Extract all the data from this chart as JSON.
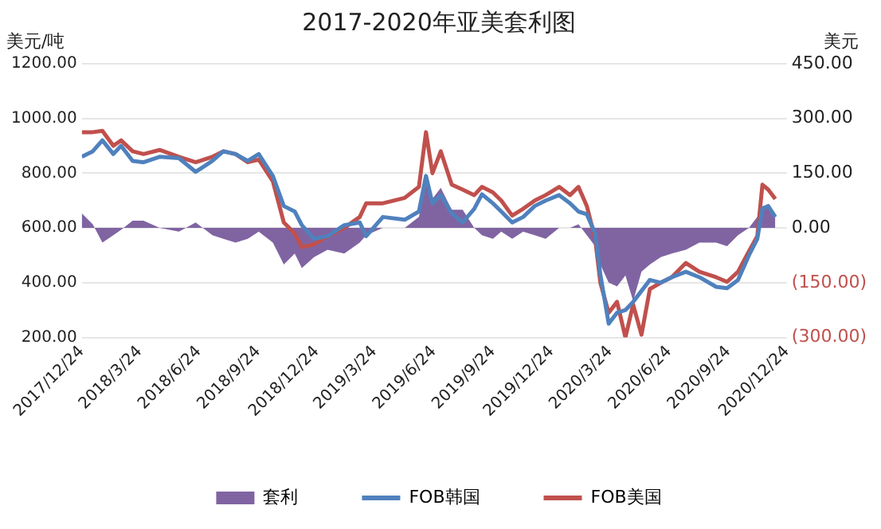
{
  "chart_data": {
    "type": "line",
    "title": "2017-2020年亚美套利图",
    "ylabel": "美元/吨",
    "y2label": "美元",
    "x": [
      "2017-12-24",
      "2018-01-10",
      "2018-01-25",
      "2018-02-11",
      "2018-02-23",
      "2018-03-13",
      "2018-03-30",
      "2018-04-24",
      "2018-05-24",
      "2018-06-19",
      "2018-07-15",
      "2018-08-01",
      "2018-08-20",
      "2018-09-08",
      "2018-09-25",
      "2018-10-17",
      "2018-11-03",
      "2018-11-20",
      "2018-12-01",
      "2018-12-20",
      "2019-01-10",
      "2019-02-05",
      "2019-03-01",
      "2019-03-11",
      "2019-04-06",
      "2019-05-10",
      "2019-06-01",
      "2019-06-12",
      "2019-06-22",
      "2019-07-05",
      "2019-07-22",
      "2019-08-08",
      "2019-08-26",
      "2019-09-07",
      "2019-09-24",
      "2019-10-07",
      "2019-10-24",
      "2019-11-10",
      "2019-11-28",
      "2019-12-15",
      "2020-01-05",
      "2020-01-22",
      "2020-02-04",
      "2020-02-17",
      "2020-03-01",
      "2020-03-09",
      "2020-03-22",
      "2020-04-04",
      "2020-04-17",
      "2020-04-29",
      "2020-05-12",
      "2020-05-25",
      "2020-06-11",
      "2020-06-28",
      "2020-07-20",
      "2020-08-10",
      "2020-09-05",
      "2020-09-22",
      "2020-10-09",
      "2020-10-26",
      "2020-11-08",
      "2020-11-16",
      "2020-11-25",
      "2020-12-06"
    ],
    "series": [
      {
        "name": "套利",
        "type": "area",
        "axis": "y2",
        "color": "#8064a2",
        "values": [
          40,
          10,
          -40,
          -20,
          -5,
          20,
          20,
          0,
          -10,
          15,
          -20,
          -30,
          -40,
          -30,
          -10,
          -40,
          -100,
          -70,
          -110,
          -80,
          -60,
          -70,
          -40,
          -20,
          0,
          0,
          30,
          120,
          80,
          110,
          50,
          50,
          0,
          -20,
          -30,
          -10,
          -30,
          -10,
          -20,
          -30,
          0,
          0,
          10,
          -20,
          -50,
          -100,
          -150,
          -160,
          -130,
          -200,
          -120,
          -100,
          -80,
          -70,
          -60,
          -40,
          -40,
          -50,
          -20,
          0,
          30,
          60,
          60,
          40
        ]
      },
      {
        "name": "FOB韩国",
        "type": "line",
        "color": "#4f81bd",
        "values": [
          860,
          880,
          920,
          870,
          900,
          845,
          840,
          860,
          855,
          805,
          845,
          880,
          870,
          845,
          870,
          790,
          680,
          660,
          610,
          560,
          570,
          610,
          620,
          570,
          640,
          630,
          660,
          790,
          690,
          720,
          654,
          620,
          670,
          723,
          690,
          660,
          620,
          640,
          680,
          700,
          720,
          690,
          660,
          650,
          580,
          430,
          250,
          290,
          300,
          330,
          370,
          410,
          400,
          420,
          440,
          420,
          385,
          380,
          410,
          500,
          560,
          671,
          680,
          640
        ]
      },
      {
        "name": "FOB美国",
        "type": "line",
        "color": "#c0504d",
        "values": [
          950,
          950,
          955,
          900,
          920,
          880,
          870,
          885,
          860,
          840,
          860,
          880,
          870,
          840,
          850,
          770,
          620,
          580,
          530,
          540,
          570,
          600,
          640,
          690,
          690,
          710,
          750,
          950,
          800,
          880,
          758,
          740,
          720,
          750,
          730,
          700,
          645,
          670,
          700,
          720,
          750,
          720,
          750,
          680,
          560,
          400,
          290,
          330,
          200,
          320,
          210,
          377,
          400,
          420,
          472,
          440,
          420,
          403,
          440,
          515,
          570,
          758,
          740,
          706
        ]
      }
    ],
    "xlim": [
      "2017-12-24",
      "2020-12-24"
    ],
    "xticks": [
      {
        "value": "2017-12-24",
        "label": "2017/12/24"
      },
      {
        "value": "2018-03-24",
        "label": "2018/3/24"
      },
      {
        "value": "2018-06-24",
        "label": "2018/6/24"
      },
      {
        "value": "2018-09-24",
        "label": "2018/9/24"
      },
      {
        "value": "2018-12-24",
        "label": "2018/12/24"
      },
      {
        "value": "2019-03-24",
        "label": "2019/3/24"
      },
      {
        "value": "2019-06-24",
        "label": "2019/6/24"
      },
      {
        "value": "2019-09-24",
        "label": "2019/9/24"
      },
      {
        "value": "2019-12-24",
        "label": "2019/12/24"
      },
      {
        "value": "2020-03-24",
        "label": "2020/3/24"
      },
      {
        "value": "2020-06-24",
        "label": "2020/6/24"
      },
      {
        "value": "2020-09-24",
        "label": "2020/9/24"
      },
      {
        "value": "2020-12-24",
        "label": "2020/12/24"
      }
    ],
    "ylim": [
      200,
      1200
    ],
    "yticks": [
      {
        "value": 200,
        "label": "200.00"
      },
      {
        "value": 400,
        "label": "400.00"
      },
      {
        "value": 600,
        "label": "600.00"
      },
      {
        "value": 800,
        "label": "800.00"
      },
      {
        "value": 1000,
        "label": "1000.00"
      },
      {
        "value": 1200,
        "label": "1200.00"
      }
    ],
    "y2lim": [
      -300,
      450
    ],
    "y2ticks": [
      {
        "value": -300,
        "label": "(300.00)"
      },
      {
        "value": -150,
        "label": "(150.00)"
      },
      {
        "value": 0,
        "label": "0.00"
      },
      {
        "value": 150,
        "label": "150.00"
      },
      {
        "value": 300,
        "label": "300.00"
      },
      {
        "value": 450,
        "label": "450.00"
      }
    ],
    "grid": "y",
    "legend": "bottom"
  }
}
